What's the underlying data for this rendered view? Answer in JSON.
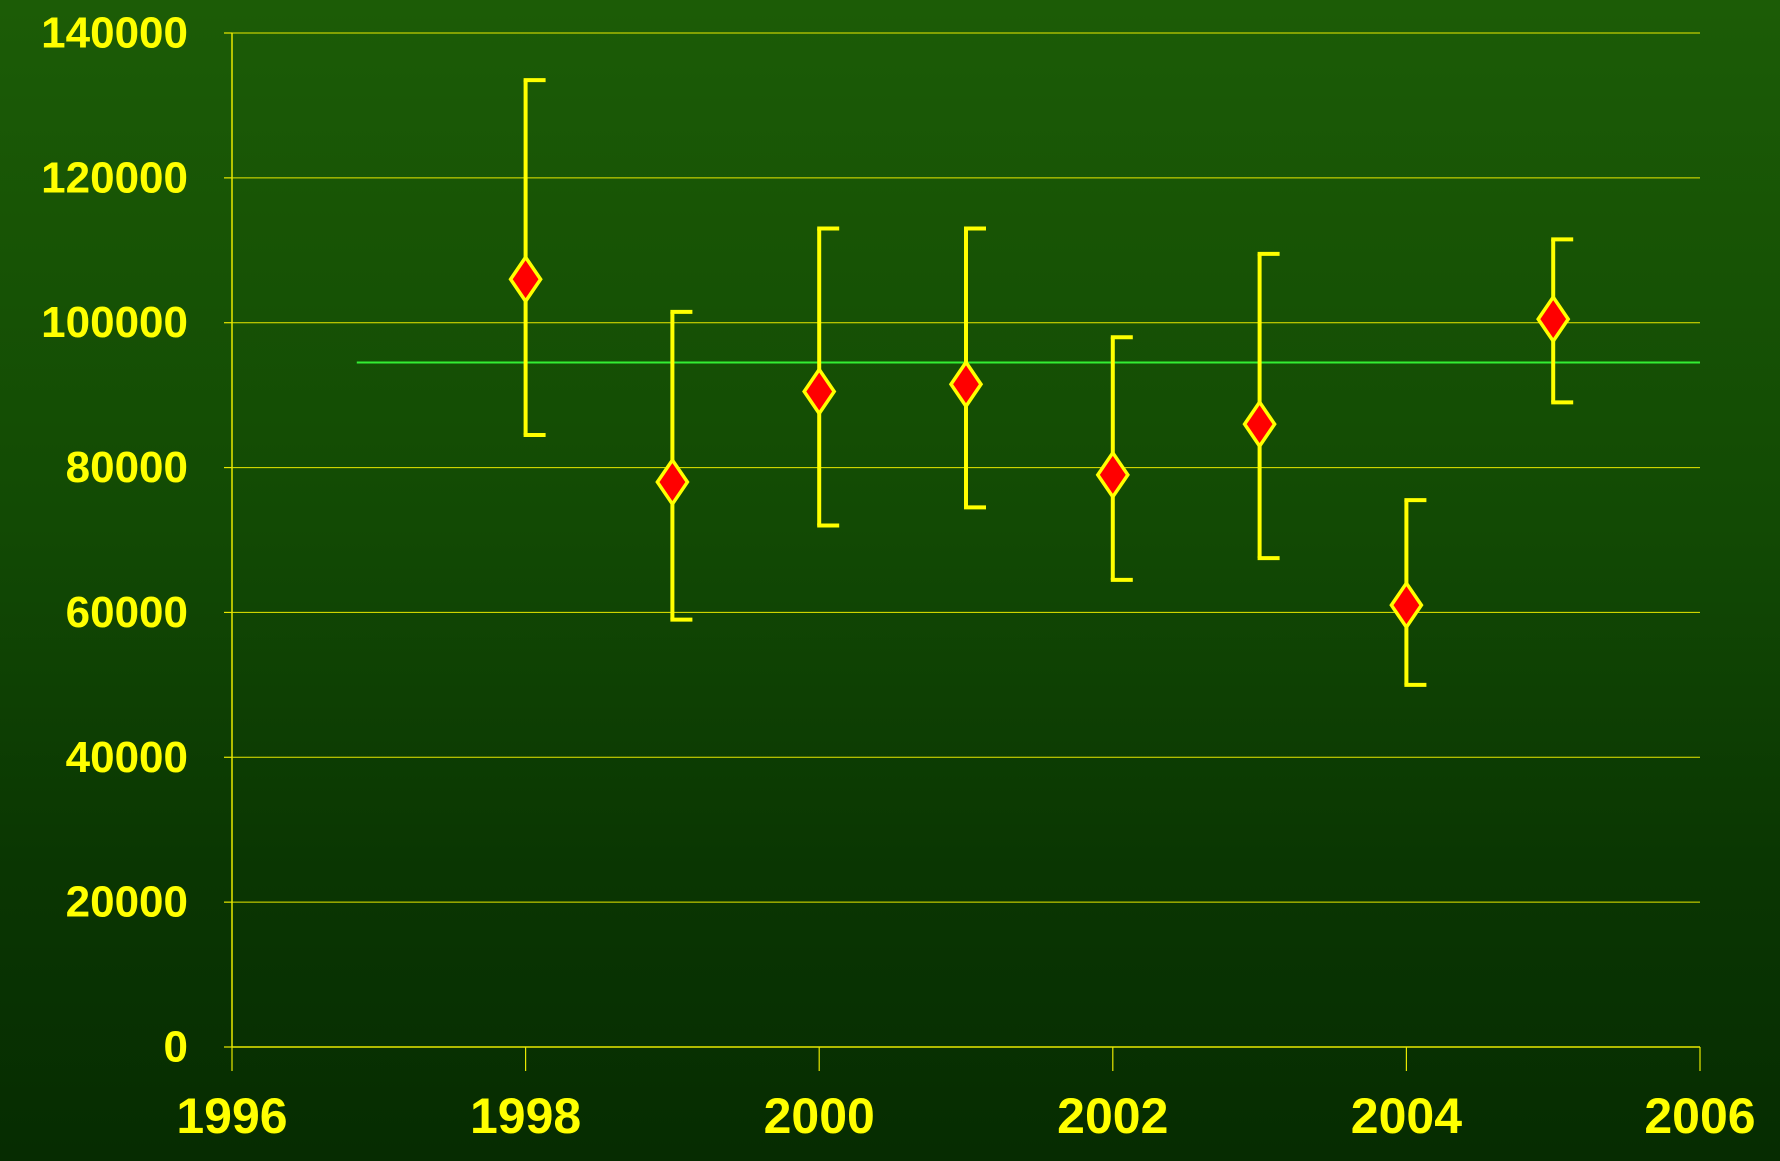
{
  "chart_data": {
    "type": "scatter",
    "title": "",
    "xlabel": "",
    "ylabel": "",
    "xlim": [
      1996,
      2006
    ],
    "ylim": [
      0,
      140000
    ],
    "x_ticks": [
      "1996",
      "1998",
      "2000",
      "2002",
      "2004",
      "2006"
    ],
    "y_ticks": [
      "0",
      "20000",
      "40000",
      "60000",
      "80000",
      "100000",
      "120000",
      "140000"
    ],
    "grid": "horizontal",
    "legend": "none",
    "series": [
      {
        "x": [
          1998,
          1999,
          2000,
          2001,
          2002,
          2003,
          2004,
          2005
        ],
        "y": [
          106000,
          78000,
          90500,
          91500,
          79000,
          86000,
          61000,
          100500
        ],
        "y_high": [
          133500,
          101500,
          113000,
          113000,
          98000,
          109500,
          75500,
          111500
        ],
        "y_low": [
          84500,
          59000,
          72000,
          74500,
          64500,
          67500,
          50000,
          89000
        ]
      }
    ],
    "reference_line": {
      "y": 94500,
      "x_start": 1996.85,
      "x_end": 2006
    },
    "colors": {
      "marker_fill": "#ff0000",
      "marker_stroke": "#ffff00",
      "error_bar": "#ffff00",
      "reference_line": "#33ee33",
      "grid": "#e8e800",
      "axis": "#e8e800",
      "text": "#ffff00"
    }
  }
}
